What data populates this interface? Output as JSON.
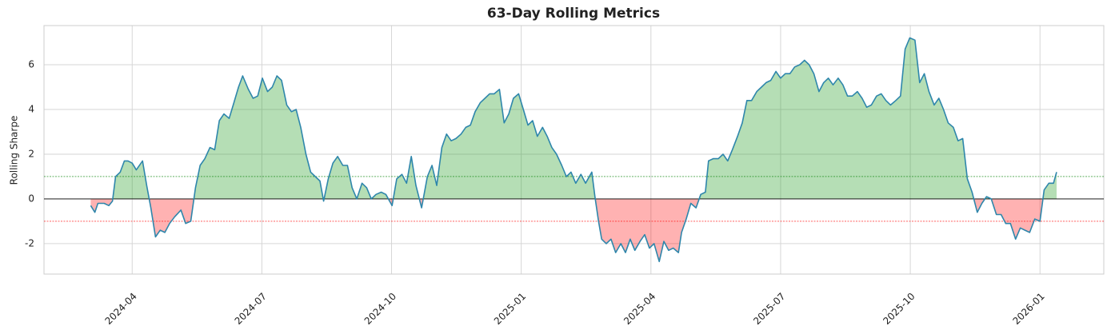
{
  "chart_data": {
    "type": "area-line",
    "title": "63-Day Rolling Metrics",
    "y_label": "Rolling Sharpe",
    "x": [
      2024.17,
      2024.178,
      2024.184,
      2024.196,
      2024.205,
      2024.212,
      2024.218,
      2024.227,
      2024.235,
      2024.242,
      2024.25,
      2024.258,
      2024.27,
      2024.278,
      2024.286,
      2024.295,
      2024.304,
      2024.313,
      2024.322,
      2024.332,
      2024.344,
      2024.353,
      2024.363,
      2024.372,
      2024.381,
      2024.39,
      2024.4,
      2024.409,
      2024.418,
      2024.427,
      2024.437,
      2024.446,
      2024.455,
      2024.463,
      2024.474,
      2024.483,
      2024.492,
      2024.501,
      2024.511,
      2024.52,
      2024.529,
      2024.538,
      2024.548,
      2024.557,
      2024.566,
      2024.575,
      2024.585,
      2024.594,
      2024.603,
      2024.612,
      2024.619,
      2024.628,
      2024.637,
      2024.646,
      2024.656,
      2024.665,
      2024.674,
      2024.683,
      2024.693,
      2024.702,
      2024.711,
      2024.72,
      2024.73,
      2024.739,
      2024.751,
      2024.76,
      2024.77,
      2024.779,
      2024.788,
      2024.797,
      2024.808,
      2024.819,
      2024.828,
      2024.837,
      2024.847,
      2024.856,
      2024.865,
      2024.874,
      2024.884,
      2024.893,
      2024.902,
      2024.911,
      2024.921,
      2024.93,
      2024.939,
      2024.948,
      2024.958,
      2024.967,
      2024.976,
      2024.985,
      2024.995,
      2025.004,
      2025.013,
      2025.022,
      2025.031,
      2025.041,
      2025.05,
      2025.059,
      2025.068,
      2025.078,
      2025.087,
      2025.096,
      2025.105,
      2025.115,
      2025.124,
      2025.136,
      2025.142,
      2025.149,
      2025.155,
      2025.164,
      2025.173,
      2025.182,
      2025.192,
      2025.201,
      2025.21,
      2025.219,
      2025.229,
      2025.238,
      2025.247,
      2025.256,
      2025.266,
      2025.275,
      2025.284,
      2025.293,
      2025.303,
      2025.309,
      2025.318,
      2025.327,
      2025.337,
      2025.346,
      2025.355,
      2025.361,
      2025.37,
      2025.38,
      2025.389,
      2025.398,
      2025.407,
      2025.417,
      2025.426,
      2025.435,
      2025.444,
      2025.454,
      2025.463,
      2025.472,
      2025.481,
      2025.491,
      2025.5,
      2025.509,
      2025.518,
      2025.527,
      2025.537,
      2025.546,
      2025.555,
      2025.564,
      2025.574,
      2025.583,
      2025.592,
      2025.601,
      2025.611,
      2025.62,
      2025.629,
      2025.638,
      2025.648,
      2025.657,
      2025.666,
      2025.675,
      2025.685,
      2025.694,
      2025.703,
      2025.712,
      2025.722,
      2025.731,
      2025.74,
      2025.749,
      2025.759,
      2025.768,
      2025.777,
      2025.786,
      2025.796,
      2025.805,
      2025.814,
      2025.823,
      2025.833,
      2025.842,
      2025.851,
      2025.86,
      2025.869,
      2025.879,
      2025.888,
      2025.897,
      2025.906,
      2025.916,
      2025.925,
      2025.934,
      2025.943,
      2025.953,
      2025.962,
      2025.971,
      2025.98,
      2025.99,
      2026.0,
      2026.008,
      2026.017,
      2026.026,
      2026.032
    ],
    "values": [
      -0.3,
      -0.6,
      -0.2,
      -0.2,
      -0.3,
      -0.1,
      1.0,
      1.2,
      1.7,
      1.7,
      1.6,
      1.3,
      1.7,
      0.6,
      -0.4,
      -1.7,
      -1.4,
      -1.5,
      -1.1,
      -0.8,
      -0.5,
      -1.1,
      -1.0,
      0.5,
      1.5,
      1.8,
      2.3,
      2.2,
      3.5,
      3.8,
      3.6,
      4.3,
      5.0,
      5.5,
      4.9,
      4.5,
      4.6,
      5.4,
      4.8,
      5.0,
      5.5,
      5.3,
      4.2,
      3.9,
      4.0,
      3.2,
      2.0,
      1.2,
      1.0,
      0.8,
      -0.1,
      0.9,
      1.6,
      1.9,
      1.5,
      1.5,
      0.5,
      0.0,
      0.7,
      0.5,
      0.0,
      0.2,
      0.3,
      0.2,
      -0.3,
      0.9,
      1.1,
      0.7,
      1.9,
      0.6,
      -0.4,
      1.0,
      1.5,
      0.6,
      2.3,
      2.9,
      2.6,
      2.7,
      2.9,
      3.2,
      3.3,
      3.9,
      4.3,
      4.5,
      4.7,
      4.7,
      4.9,
      3.4,
      3.8,
      4.5,
      4.7,
      4.0,
      3.3,
      3.5,
      2.8,
      3.2,
      2.8,
      2.3,
      2.0,
      1.5,
      1.0,
      1.2,
      0.7,
      1.1,
      0.7,
      1.2,
      0.1,
      -1.0,
      -1.8,
      -2.0,
      -1.8,
      -2.4,
      -2.0,
      -2.4,
      -1.8,
      -2.3,
      -1.9,
      -1.6,
      -2.2,
      -2.0,
      -2.8,
      -1.9,
      -2.3,
      -2.2,
      -2.4,
      -1.5,
      -0.9,
      -0.2,
      -0.4,
      0.2,
      0.3,
      1.7,
      1.8,
      1.8,
      2.0,
      1.7,
      2.2,
      2.8,
      3.4,
      4.4,
      4.4,
      4.8,
      5.0,
      5.2,
      5.3,
      5.7,
      5.4,
      5.6,
      5.6,
      5.9,
      6.0,
      6.2,
      6.0,
      5.6,
      4.8,
      5.2,
      5.4,
      5.1,
      5.4,
      5.1,
      4.6,
      4.6,
      4.8,
      4.5,
      4.1,
      4.2,
      4.6,
      4.7,
      4.4,
      4.2,
      4.4,
      4.6,
      6.7,
      7.2,
      7.1,
      5.2,
      5.6,
      4.8,
      4.2,
      4.5,
      4.0,
      3.4,
      3.2,
      2.6,
      2.7,
      0.9,
      0.3,
      -0.6,
      -0.2,
      0.1,
      0.0,
      -0.7,
      -0.7,
      -1.1,
      -1.1,
      -1.8,
      -1.3,
      -1.4,
      -1.5,
      -0.9,
      -1.0,
      0.4,
      0.7,
      0.7,
      1.2
    ],
    "color": "#2e86ab",
    "fill_positive": "#2ca02c",
    "fill_negative": "#ff0000",
    "hlines": [
      {
        "value": 0,
        "color": "#000000"
      },
      {
        "value": 1,
        "color": "#008000"
      },
      {
        "value": -1,
        "color": "#ff0000"
      }
    ],
    "xlim": [
      2024.08,
      2026.123
    ],
    "ylim": [
      -3.36,
      7.75
    ],
    "xticks": [
      {
        "value": 2024.25,
        "label": "2024-04"
      },
      {
        "value": 2024.5,
        "label": "2024-07"
      },
      {
        "value": 2024.75,
        "label": "2024-10"
      },
      {
        "value": 2025.0,
        "label": "2025-01"
      },
      {
        "value": 2025.25,
        "label": "2025-04"
      },
      {
        "value": 2025.5,
        "label": "2025-07"
      },
      {
        "value": 2025.75,
        "label": "2025-10"
      },
      {
        "value": 2026.0,
        "label": "2026-01"
      }
    ],
    "yticks": [
      -2,
      0,
      2,
      4,
      6
    ],
    "grid": true
  }
}
